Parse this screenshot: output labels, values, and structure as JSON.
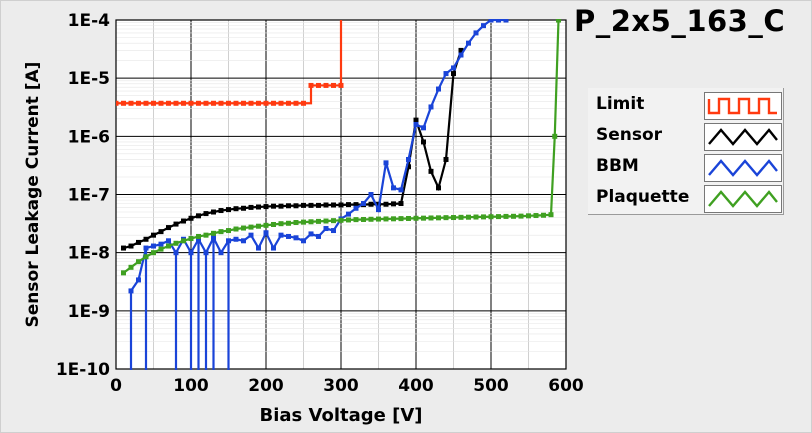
{
  "title": "P_2x5_163_C",
  "chart_data": {
    "type": "line",
    "title": "P_2x5_163_C",
    "xlabel": "Bias Voltage [V]",
    "ylabel": "Sensor Leakage Current [A]",
    "xlim": [
      0,
      600
    ],
    "ylim": [
      1e-10,
      0.0001
    ],
    "yscale": "log",
    "grid": true,
    "legend_placement": "right",
    "x_ticks": [
      0,
      100,
      200,
      300,
      400,
      500,
      600
    ],
    "x_tick_labels": [
      "0",
      "100",
      "200",
      "300",
      "400",
      "500",
      "600"
    ],
    "y_ticks": [
      1e-10,
      1e-09,
      1e-08,
      1e-07,
      1e-06,
      1e-05,
      0.0001
    ],
    "y_tick_labels": [
      "1E-10",
      "1E-9",
      "1E-8",
      "1E-7",
      "1E-6",
      "1E-5",
      "1E-4"
    ],
    "series": [
      {
        "name": "Limit",
        "color": "#ff3a10",
        "step": true,
        "x": [
          0,
          10,
          20,
          30,
          40,
          50,
          60,
          70,
          80,
          90,
          100,
          110,
          120,
          130,
          140,
          150,
          160,
          170,
          180,
          190,
          200,
          210,
          220,
          230,
          240,
          250,
          260,
          270,
          280,
          290,
          300,
          300
        ],
        "y": [
          3.7e-06,
          3.7e-06,
          3.7e-06,
          3.7e-06,
          3.7e-06,
          3.7e-06,
          3.7e-06,
          3.7e-06,
          3.7e-06,
          3.7e-06,
          3.7e-06,
          3.7e-06,
          3.7e-06,
          3.7e-06,
          3.7e-06,
          3.7e-06,
          3.7e-06,
          3.7e-06,
          3.7e-06,
          3.7e-06,
          3.7e-06,
          3.7e-06,
          3.7e-06,
          3.7e-06,
          3.7e-06,
          3.7e-06,
          7.5e-06,
          7.5e-06,
          7.5e-06,
          7.5e-06,
          7.5e-06,
          0.0001
        ]
      },
      {
        "name": "Sensor",
        "color": "#000000",
        "x": [
          10,
          20,
          30,
          40,
          50,
          60,
          70,
          80,
          90,
          100,
          110,
          120,
          130,
          140,
          150,
          160,
          170,
          180,
          190,
          200,
          210,
          220,
          230,
          240,
          250,
          260,
          270,
          280,
          290,
          300,
          310,
          320,
          330,
          340,
          350,
          360,
          370,
          380,
          390,
          400,
          410,
          420,
          430,
          440,
          450,
          460
        ],
        "y": [
          1.2e-08,
          1.3e-08,
          1.5e-08,
          1.7e-08,
          2e-08,
          2.3e-08,
          2.7e-08,
          3.1e-08,
          3.5e-08,
          3.9e-08,
          4.3e-08,
          4.7e-08,
          5e-08,
          5.3e-08,
          5.5e-08,
          5.7e-08,
          5.8e-08,
          6e-08,
          6.1e-08,
          6.2e-08,
          6.3e-08,
          6.3e-08,
          6.4e-08,
          6.4e-08,
          6.5e-08,
          6.5e-08,
          6.5e-08,
          6.6e-08,
          6.6e-08,
          6.6e-08,
          6.7e-08,
          6.7e-08,
          6.7e-08,
          6.8e-08,
          6.8e-08,
          6.8e-08,
          6.9e-08,
          7e-08,
          3e-07,
          1.9e-06,
          8e-07,
          2.5e-07,
          1.3e-07,
          4e-07,
          1.2e-05,
          3e-05
        ]
      },
      {
        "name": "BBM",
        "color": "#1a44d8",
        "x": [
          20,
          30,
          40,
          50,
          60,
          70,
          80,
          90,
          100,
          110,
          120,
          130,
          140,
          150,
          160,
          170,
          180,
          190,
          200,
          210,
          220,
          230,
          240,
          250,
          260,
          270,
          280,
          290,
          300,
          310,
          320,
          330,
          340,
          350,
          360,
          370,
          380,
          390,
          400,
          410,
          420,
          430,
          440,
          450,
          460,
          470,
          480,
          490,
          500,
          510,
          520
        ],
        "y": [
          2.2e-09,
          3.4e-09,
          1.2e-08,
          1.3e-08,
          1.4e-08,
          1.6e-08,
          1e-08,
          1.7e-08,
          1e-08,
          1.7e-08,
          1e-08,
          1.8e-08,
          1e-08,
          1.6e-08,
          1.7e-08,
          1.6e-08,
          2e-08,
          1.2e-08,
          2.2e-08,
          1.2e-08,
          2e-08,
          1.9e-08,
          1.8e-08,
          1.6e-08,
          2.1e-08,
          1.9e-08,
          2.6e-08,
          2.4e-08,
          3.8e-08,
          4.6e-08,
          5.8e-08,
          7e-08,
          1e-07,
          5.5e-08,
          3.5e-07,
          1.3e-07,
          1.2e-07,
          4e-07,
          1.6e-06,
          1.4e-06,
          3.2e-06,
          6.5e-06,
          1.2e-05,
          1.5e-05,
          2.5e-05,
          4e-05,
          6e-05,
          8e-05,
          0.0001,
          0.0001,
          0.0001
        ],
        "drops": [
          20,
          40,
          80,
          100,
          110,
          120,
          130,
          150
        ]
      },
      {
        "name": "Plaquette",
        "color": "#3fa021",
        "x": [
          10,
          20,
          30,
          40,
          50,
          60,
          70,
          80,
          90,
          100,
          110,
          120,
          130,
          140,
          150,
          160,
          170,
          180,
          190,
          200,
          210,
          220,
          230,
          240,
          250,
          260,
          270,
          280,
          290,
          300,
          310,
          320,
          330,
          340,
          350,
          360,
          370,
          380,
          390,
          400,
          410,
          420,
          430,
          440,
          450,
          460,
          470,
          480,
          490,
          500,
          510,
          520,
          530,
          540,
          550,
          560,
          570,
          580,
          585,
          590
        ],
        "y": [
          4.5e-09,
          5.6e-09,
          7e-09,
          8.5e-09,
          1e-08,
          1.15e-08,
          1.3e-08,
          1.45e-08,
          1.6e-08,
          1.75e-08,
          1.9e-08,
          2e-08,
          2.15e-08,
          2.3e-08,
          2.4e-08,
          2.55e-08,
          2.65e-08,
          2.75e-08,
          2.85e-08,
          2.95e-08,
          3.05e-08,
          3.15e-08,
          3.2e-08,
          3.3e-08,
          3.35e-08,
          3.4e-08,
          3.45e-08,
          3.5e-08,
          3.55e-08,
          3.6e-08,
          3.65e-08,
          3.7e-08,
          3.72e-08,
          3.75e-08,
          3.78e-08,
          3.8e-08,
          3.82e-08,
          3.85e-08,
          3.87e-08,
          3.9e-08,
          3.92e-08,
          3.95e-08,
          3.97e-08,
          4e-08,
          4.02e-08,
          4.05e-08,
          4.07e-08,
          4.1e-08,
          4.12e-08,
          4.15e-08,
          4.17e-08,
          4.2e-08,
          4.22e-08,
          4.25e-08,
          4.3e-08,
          4.35e-08,
          4.4e-08,
          4.5e-08,
          1e-06,
          0.0001
        ]
      }
    ]
  }
}
